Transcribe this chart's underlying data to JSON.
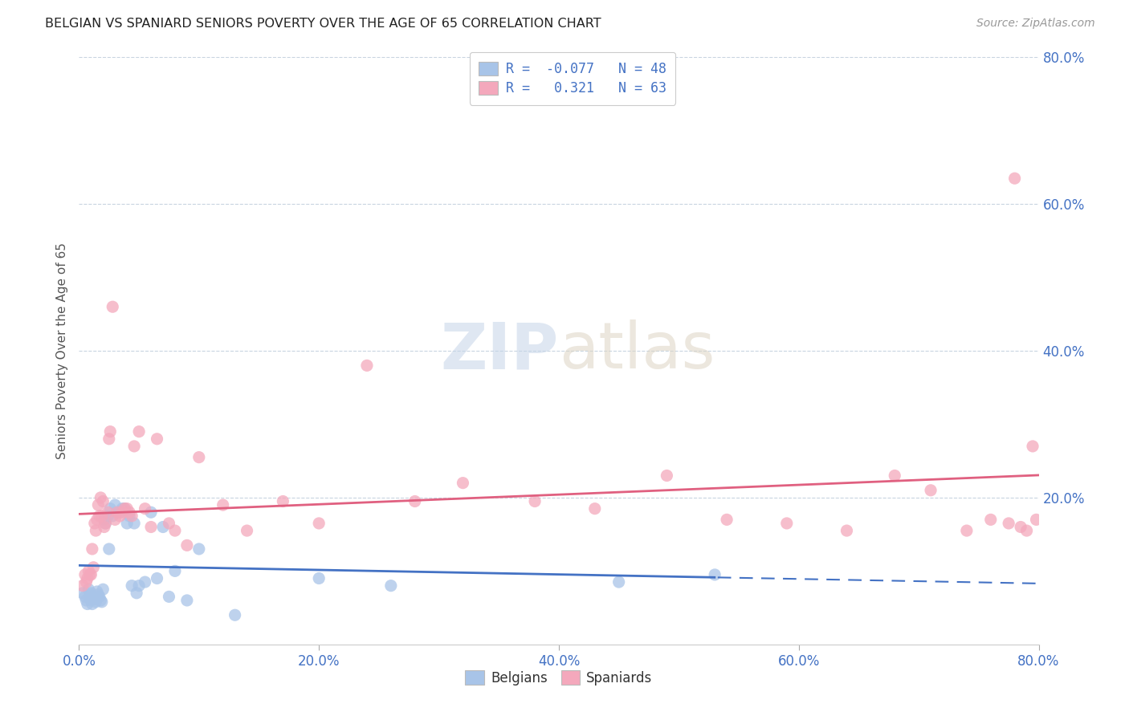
{
  "title": "BELGIAN VS SPANIARD SENIORS POVERTY OVER THE AGE OF 65 CORRELATION CHART",
  "source": "Source: ZipAtlas.com",
  "ylabel": "Seniors Poverty Over the Age of 65",
  "belgians_R": -0.077,
  "belgians_N": 48,
  "spaniards_R": 0.321,
  "spaniards_N": 63,
  "belgian_color": "#a8c4e8",
  "spaniard_color": "#f4a8bc",
  "belgian_line_color": "#4472c4",
  "spaniard_line_color": "#e06080",
  "axis_color": "#4472c4",
  "text_color": "#222222",
  "source_color": "#999999",
  "grid_color": "#c8d4e0",
  "background_color": "#ffffff",
  "xlim": [
    0.0,
    0.8
  ],
  "ylim": [
    0.0,
    0.8
  ],
  "x_ticks": [
    0.0,
    0.2,
    0.4,
    0.6,
    0.8
  ],
  "y_ticks": [
    0.2,
    0.4,
    0.6,
    0.8
  ],
  "belgians_x": [
    0.003,
    0.005,
    0.006,
    0.007,
    0.008,
    0.009,
    0.01,
    0.01,
    0.011,
    0.012,
    0.013,
    0.014,
    0.015,
    0.016,
    0.017,
    0.018,
    0.019,
    0.02,
    0.021,
    0.022,
    0.024,
    0.025,
    0.026,
    0.028,
    0.03,
    0.032,
    0.034,
    0.036,
    0.038,
    0.04,
    0.042,
    0.044,
    0.046,
    0.048,
    0.05,
    0.055,
    0.06,
    0.065,
    0.07,
    0.075,
    0.08,
    0.09,
    0.1,
    0.13,
    0.2,
    0.26,
    0.45,
    0.53
  ],
  "belgians_y": [
    0.07,
    0.065,
    0.06,
    0.055,
    0.075,
    0.068,
    0.07,
    0.06,
    0.055,
    0.065,
    0.062,
    0.058,
    0.072,
    0.068,
    0.065,
    0.06,
    0.058,
    0.075,
    0.17,
    0.165,
    0.175,
    0.13,
    0.185,
    0.175,
    0.19,
    0.18,
    0.18,
    0.185,
    0.185,
    0.165,
    0.175,
    0.08,
    0.165,
    0.07,
    0.08,
    0.085,
    0.18,
    0.09,
    0.16,
    0.065,
    0.1,
    0.06,
    0.13,
    0.04,
    0.09,
    0.08,
    0.085,
    0.095
  ],
  "spaniards_x": [
    0.003,
    0.005,
    0.006,
    0.007,
    0.008,
    0.009,
    0.01,
    0.011,
    0.012,
    0.013,
    0.014,
    0.015,
    0.016,
    0.017,
    0.018,
    0.019,
    0.02,
    0.021,
    0.022,
    0.024,
    0.025,
    0.026,
    0.028,
    0.03,
    0.032,
    0.034,
    0.036,
    0.038,
    0.04,
    0.042,
    0.044,
    0.046,
    0.05,
    0.055,
    0.06,
    0.065,
    0.075,
    0.08,
    0.09,
    0.1,
    0.12,
    0.14,
    0.17,
    0.2,
    0.24,
    0.28,
    0.32,
    0.38,
    0.43,
    0.49,
    0.54,
    0.59,
    0.64,
    0.68,
    0.71,
    0.74,
    0.76,
    0.775,
    0.785,
    0.79,
    0.795,
    0.798,
    0.78
  ],
  "spaniards_y": [
    0.08,
    0.095,
    0.085,
    0.09,
    0.1,
    0.095,
    0.095,
    0.13,
    0.105,
    0.165,
    0.155,
    0.17,
    0.19,
    0.175,
    0.2,
    0.175,
    0.195,
    0.16,
    0.165,
    0.18,
    0.28,
    0.29,
    0.46,
    0.17,
    0.18,
    0.175,
    0.18,
    0.185,
    0.185,
    0.18,
    0.175,
    0.27,
    0.29,
    0.185,
    0.16,
    0.28,
    0.165,
    0.155,
    0.135,
    0.255,
    0.19,
    0.155,
    0.195,
    0.165,
    0.38,
    0.195,
    0.22,
    0.195,
    0.185,
    0.23,
    0.17,
    0.165,
    0.155,
    0.23,
    0.21,
    0.155,
    0.17,
    0.165,
    0.16,
    0.155,
    0.27,
    0.17,
    0.635
  ]
}
